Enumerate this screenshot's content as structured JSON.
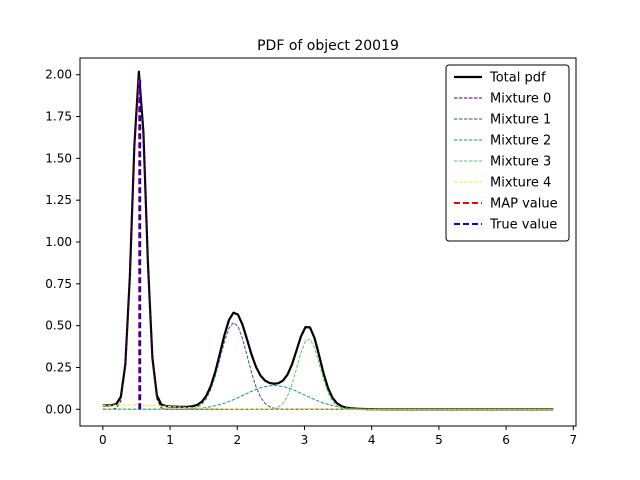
{
  "chart_data": {
    "type": "line",
    "title": "PDF of object 20019",
    "xlabel": "",
    "ylabel": "",
    "xlim": [
      -0.34,
      7.04
    ],
    "ylim": [
      -0.1,
      2.1
    ],
    "xticks": [
      0,
      1,
      2,
      3,
      4,
      5,
      6,
      7
    ],
    "xtick_labels": [
      "0",
      "1",
      "2",
      "3",
      "4",
      "5",
      "6",
      "7"
    ],
    "yticks": [
      0.0,
      0.25,
      0.5,
      0.75,
      1.0,
      1.25,
      1.5,
      1.75,
      2.0
    ],
    "ytick_labels": [
      "0.00",
      "0.25",
      "0.50",
      "0.75",
      "1.00",
      "1.25",
      "1.50",
      "1.75",
      "2.00"
    ],
    "grid": false,
    "legend_position": "top-right",
    "x_range": [
      0.0,
      6.7
    ],
    "x_step": 0.067,
    "components": [
      {
        "name": "Mixture 0",
        "color": "#440154",
        "weight": 0.5,
        "mu": 0.54,
        "sigma": 0.1
      },
      {
        "name": "Mixture 1",
        "color": "#3b528b",
        "weight": 0.26,
        "mu": 1.95,
        "sigma": 0.2
      },
      {
        "name": "Mixture 2",
        "color": "#21918c",
        "weight": 0.16,
        "mu": 2.55,
        "sigma": 0.45
      },
      {
        "name": "Mixture 3",
        "color": "#5ec962",
        "weight": 0.18,
        "mu": 3.06,
        "sigma": 0.17
      },
      {
        "name": "Mixture 4",
        "color": "#fde725",
        "weight": 0.045,
        "mu": 0.35,
        "sigma": 0.7
      }
    ],
    "total": {
      "name": "Total pdf",
      "color": "#000000"
    },
    "map_value": {
      "name": "MAP value",
      "x": 0.54,
      "color": "#ff0000"
    },
    "true_value": {
      "name": "True value",
      "x": 0.54,
      "color": "#0000ff"
    }
  }
}
